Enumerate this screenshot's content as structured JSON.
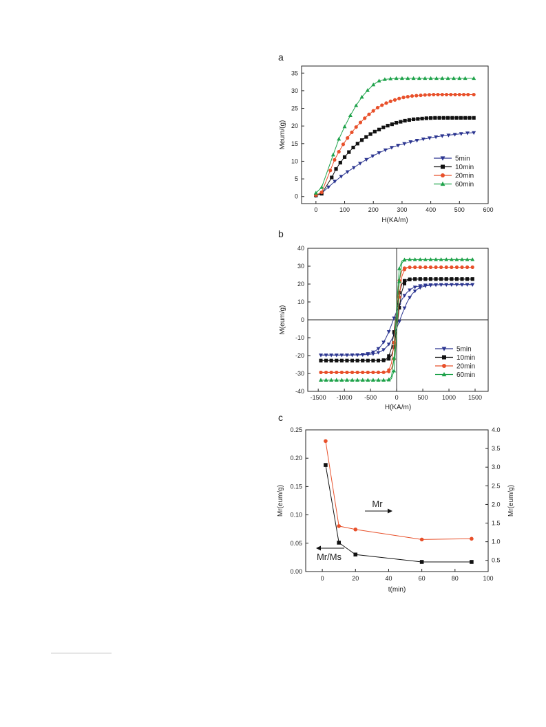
{
  "page": {
    "footnote_rule": true
  },
  "chart_data": [
    {
      "panel_label": "a",
      "type": "line",
      "xlabel": "H(KA/m)",
      "ylabel": "Meum/(g)",
      "xlim": [
        -50,
        600
      ],
      "ylim": [
        -2,
        37
      ],
      "xticks": [
        0,
        100,
        200,
        300,
        400,
        500,
        600
      ],
      "yticks": [
        0,
        5,
        10,
        15,
        20,
        25,
        30,
        35
      ],
      "legend": {
        "placement": "bottom-right"
      },
      "series": [
        {
          "name": "5min",
          "color": "#2b3590",
          "marker": "triangle-down",
          "x": [
            0,
            22,
            44,
            66,
            88,
            110,
            132,
            154,
            176,
            198,
            220,
            242,
            264,
            286,
            308,
            330,
            352,
            374,
            396,
            418,
            440,
            462,
            484,
            506,
            528,
            550
          ],
          "y": [
            0.2,
            1.1,
            2.7,
            4.3,
            5.7,
            7.0,
            8.2,
            9.4,
            10.5,
            11.5,
            12.4,
            13.2,
            13.9,
            14.5,
            15.0,
            15.5,
            15.9,
            16.3,
            16.6,
            16.9,
            17.2,
            17.4,
            17.6,
            17.8,
            18.0,
            18.1
          ]
        },
        {
          "name": "10min",
          "color": "#111111",
          "marker": "square",
          "x": [
            0,
            20,
            55,
            70,
            85,
            100,
            115,
            130,
            145,
            160,
            175,
            190,
            205,
            220,
            235,
            250,
            265,
            280,
            295,
            310,
            325,
            340,
            355,
            370,
            385,
            400,
            415,
            430,
            445,
            460,
            475,
            490,
            505,
            520,
            535,
            550
          ],
          "y": [
            0.3,
            0.8,
            5.4,
            7.8,
            9.6,
            11.2,
            12.6,
            13.9,
            15.0,
            16.0,
            16.9,
            17.7,
            18.4,
            19.0,
            19.6,
            20.1,
            20.5,
            20.9,
            21.2,
            21.5,
            21.7,
            21.9,
            22.0,
            22.1,
            22.2,
            22.25,
            22.3,
            22.3,
            22.3,
            22.3,
            22.3,
            22.3,
            22.3,
            22.3,
            22.3,
            22.3
          ]
        },
        {
          "name": "20min",
          "color": "#e8502a",
          "marker": "circle",
          "x": [
            0,
            20,
            50,
            65,
            80,
            95,
            110,
            125,
            140,
            155,
            170,
            185,
            200,
            215,
            230,
            245,
            260,
            275,
            290,
            305,
            320,
            335,
            350,
            365,
            380,
            395,
            410,
            425,
            440,
            455,
            470,
            485,
            500,
            515,
            530,
            550
          ],
          "y": [
            0.4,
            1.2,
            7.4,
            10.4,
            12.7,
            14.8,
            16.6,
            18.2,
            19.7,
            21.0,
            22.2,
            23.3,
            24.3,
            25.2,
            25.9,
            26.5,
            27.0,
            27.4,
            27.8,
            28.1,
            28.3,
            28.5,
            28.6,
            28.7,
            28.8,
            28.85,
            28.9,
            28.9,
            28.9,
            28.9,
            28.9,
            28.9,
            28.9,
            28.9,
            28.9,
            28.9
          ]
        },
        {
          "name": "60min",
          "color": "#1ea24a",
          "marker": "triangle-up",
          "x": [
            0,
            20,
            60,
            80,
            100,
            120,
            140,
            160,
            180,
            200,
            220,
            240,
            260,
            280,
            300,
            320,
            340,
            360,
            380,
            400,
            420,
            440,
            460,
            480,
            500,
            520,
            550
          ],
          "y": [
            1.0,
            2.6,
            11.8,
            16.3,
            19.8,
            23.0,
            25.8,
            28.2,
            30.1,
            31.7,
            32.8,
            33.2,
            33.4,
            33.5,
            33.5,
            33.5,
            33.5,
            33.5,
            33.5,
            33.5,
            33.5,
            33.5,
            33.5,
            33.5,
            33.5,
            33.5,
            33.5
          ]
        }
      ]
    },
    {
      "panel_label": "b",
      "type": "line",
      "xlabel": "H(KA/m)",
      "ylabel": "M(eum/g)",
      "xlim": [
        -1700,
        1750
      ],
      "ylim": [
        -40,
        40
      ],
      "xticks": [
        -1500,
        -1000,
        -500,
        0,
        500,
        1000,
        1500
      ],
      "yticks": [
        -40,
        -30,
        -20,
        -10,
        0,
        10,
        20,
        30,
        40
      ],
      "grid": false,
      "legend": {
        "placement": "bottom-right"
      },
      "series": [
        {
          "name": "5min",
          "color": "#2b3590",
          "marker": "triangle-down",
          "ms": 19.7,
          "k": 250
        },
        {
          "name": "10min",
          "color": "#111111",
          "marker": "square",
          "ms": 22.8,
          "k": 90
        },
        {
          "name": "20min",
          "color": "#e8502a",
          "marker": "circle",
          "ms": 29.4,
          "k": 70
        },
        {
          "name": "60min",
          "color": "#1ea24a",
          "marker": "triangle-up",
          "ms": 33.7,
          "k": 50
        }
      ]
    },
    {
      "panel_label": "c",
      "type": "line",
      "xlabel": "t(min)",
      "ylabel": "Mr(eum/g)",
      "y2label": "Mr(eum/g)",
      "xlim": [
        -10,
        100
      ],
      "ylim": [
        0,
        0.25
      ],
      "y2lim": [
        0.2,
        4.0
      ],
      "xticks": [
        0,
        20,
        40,
        60,
        80,
        100
      ],
      "yticks": [
        "0.00",
        "0.05",
        "0.10",
        "0.15",
        "0.20",
        "0.25"
      ],
      "y2ticks": [
        "0.5",
        "1.0",
        "1.5",
        "2.0",
        "2.5",
        "3.0",
        "3.5",
        "4.0"
      ],
      "annotations": [
        {
          "text": "Mr",
          "arrow": "right"
        },
        {
          "text": "Mr/Ms",
          "arrow": "left"
        }
      ],
      "series": [
        {
          "name": "",
          "axis": "left",
          "color": "#111111",
          "marker": "square",
          "x": [
            2,
            10,
            20,
            60,
            90
          ],
          "y": [
            0.188,
            0.051,
            0.03,
            0.017,
            0.017
          ]
        },
        {
          "name": "",
          "axis": "right",
          "color": "#e8502a",
          "marker": "circle",
          "x": [
            2,
            10,
            20,
            60,
            90
          ],
          "y": [
            3.7,
            1.42,
            1.33,
            1.06,
            1.08
          ]
        }
      ]
    }
  ]
}
